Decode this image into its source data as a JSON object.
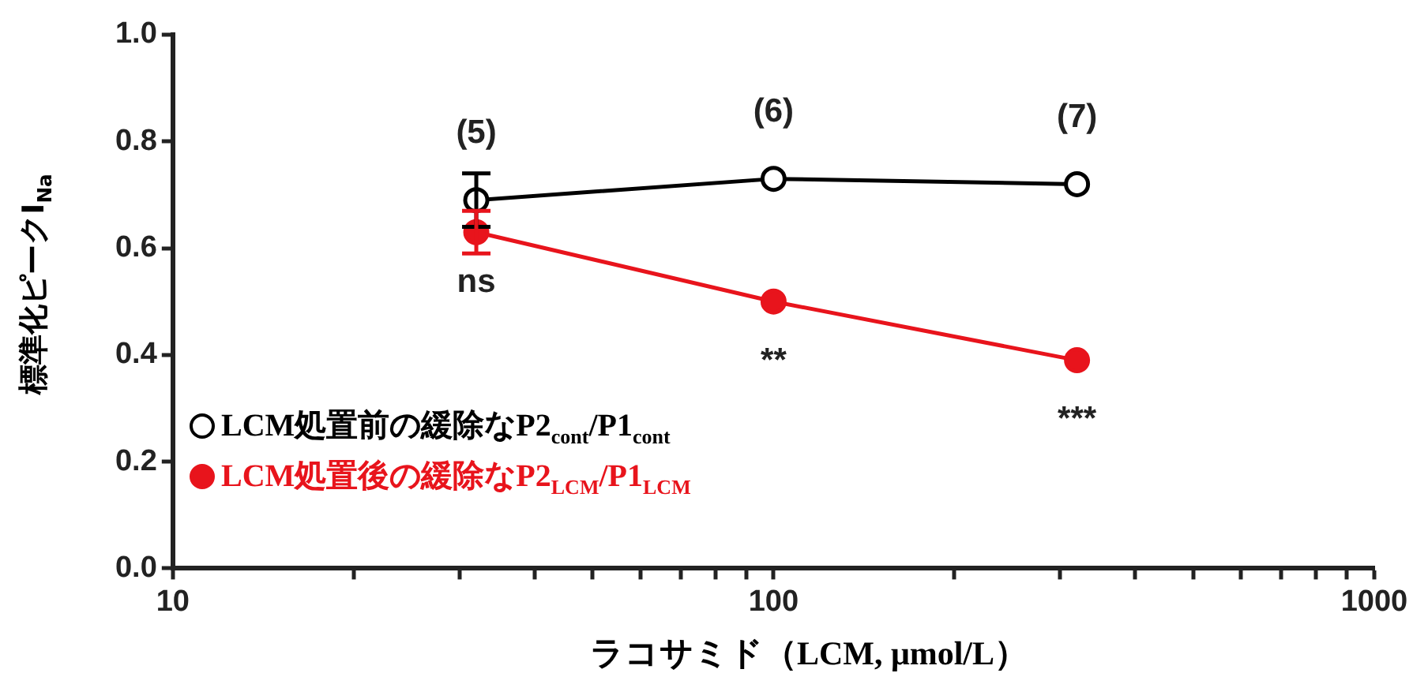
{
  "chart_data": {
    "type": "line",
    "ylabel": "標準化ピークI$_{Na}$",
    "xlabel": "ラコサミド（LCM, μmol/L）",
    "x": [
      32,
      100,
      320
    ],
    "log": "x",
    "xlim": [
      10,
      1000
    ],
    "xticks": [
      10,
      {
        "value": 20,
        "label": null
      },
      {
        "value": 30,
        "label": null
      },
      {
        "value": 40,
        "label": null
      },
      {
        "value": 50,
        "label": null
      },
      {
        "value": 60,
        "label": null
      },
      {
        "value": 70,
        "label": null
      },
      {
        "value": 80,
        "label": null
      },
      {
        "value": 90,
        "label": null
      },
      100,
      {
        "value": 200,
        "label": null
      },
      {
        "value": 300,
        "label": null
      },
      {
        "value": 400,
        "label": null
      },
      {
        "value": 500,
        "label": null
      },
      {
        "value": 600,
        "label": null
      },
      {
        "value": 700,
        "label": null
      },
      {
        "value": 800,
        "label": null
      },
      {
        "value": 900,
        "label": null
      },
      1000
    ],
    "ylim": [
      0,
      1
    ],
    "yticks": [
      {
        "value": 0,
        "label": "0.0"
      },
      {
        "value": 0.2,
        "label": "0.2"
      },
      {
        "value": 0.4,
        "label": "0.4"
      },
      {
        "value": 0.6,
        "label": "0.6"
      },
      {
        "value": 0.8,
        "label": "0.8"
      },
      {
        "value": 1,
        "label": "1.0"
      }
    ],
    "grid": false,
    "legend": "bottom left",
    "marker": "circle",
    "line_style": "solid",
    "series": [
      {
        "name": "LCM処置前の緩除なP2$_{cont}$/P1$_{cont}$",
        "color": "#000000",
        "values": [
          0.69,
          0.73,
          0.72
        ],
        "errors": [
          0.05,
          null,
          null
        ]
      },
      {
        "name": "LCM処置後の緩除なP2$_{LCM}$/P1$_{LCM}$",
        "color": "#e8141c",
        "values": [
          0.63,
          0.5,
          0.39
        ],
        "errors": [
          0.04,
          null,
          null
        ]
      }
    ],
    "annotations": [
      "(5)",
      "(6)",
      "(7)",
      "ns",
      "**",
      "***"
    ]
  }
}
